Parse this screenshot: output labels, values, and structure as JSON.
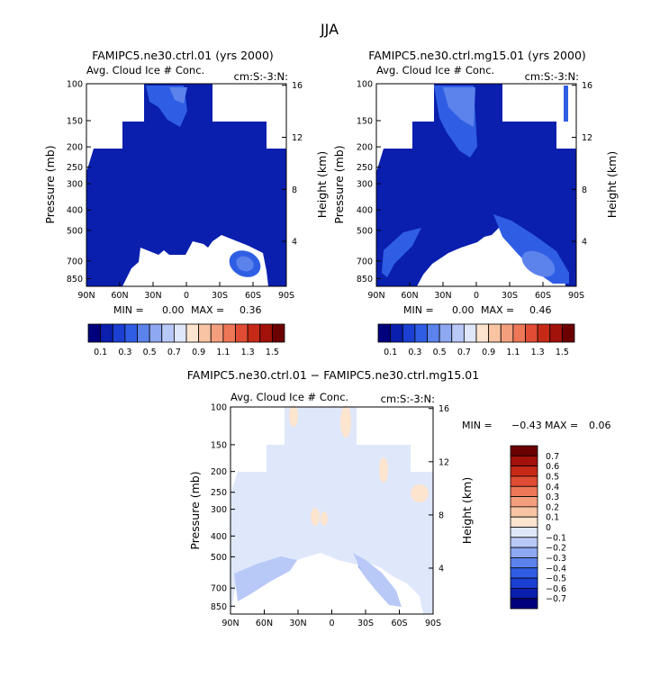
{
  "page": {
    "title": "JJA"
  },
  "colors": {
    "cb_abs": [
      "#00007d",
      "#0a1fae",
      "#1a3fd2",
      "#2f5ee4",
      "#5c82ec",
      "#8ea8f2",
      "#b9c9f7",
      "#dfe7fb",
      "#fce4cf",
      "#f8c4a3",
      "#f39f7d",
      "#ee7758",
      "#e04d34",
      "#c62a17",
      "#a2110a",
      "#6c0000"
    ],
    "cb_diff": [
      "#00007d",
      "#0a1fae",
      "#1a3fd2",
      "#2f5ee4",
      "#5c82ec",
      "#8ea8f2",
      "#b9c9f7",
      "#dfe7fb",
      "#fce4cf",
      "#f8c4a3",
      "#f39f7d",
      "#ee7758",
      "#e04d34",
      "#c62a17",
      "#a2110a",
      "#6c0000"
    ],
    "field_main": "#0a1fae",
    "field_max": "#2f5ee4",
    "field_hi": "#5c82ec",
    "diff_main": "#dfe7fb",
    "diff_neg": "#b9c9f7",
    "diff_neg2": "#8ea8f2",
    "diff_pos": "#fce4cf"
  },
  "chart_data": [
    {
      "type": "contour",
      "title": "FAMIPC5.ne30.ctrl.01 (yrs 2000)",
      "subtitle": "Avg. Cloud Ice # Conc.",
      "units": "cm:S:-3:N:",
      "ylabel": "Pressure (mb)",
      "y2label": "Height (km)",
      "pressure_ticks": [
        "100",
        "150",
        "200",
        "250",
        "300",
        "400",
        "500",
        "700",
        "850"
      ],
      "height_ticks": [
        "16",
        "12",
        "8",
        "4"
      ],
      "lat_ticks": [
        "90N",
        "60N",
        "30N",
        "0",
        "30S",
        "60S",
        "90S"
      ],
      "xlim": [
        90,
        -90
      ],
      "ylim_mb": [
        100,
        925
      ],
      "stats": {
        "min_label": "MIN = ",
        "min": "0.00",
        "max_label": "MAX = ",
        "max": "0.36"
      },
      "colorbar": {
        "levels": [
          0.1,
          0.3,
          0.5,
          0.7,
          0.9,
          1.1,
          1.3,
          1.5
        ],
        "labels": [
          "0.1",
          "0.3",
          "0.5",
          "0.7",
          "0.9",
          "1.1",
          "1.3",
          "1.5"
        ]
      }
    },
    {
      "type": "contour",
      "title": "FAMIPC5.ne30.ctrl.mg15.01 (yrs 2000)",
      "subtitle": "Avg. Cloud Ice # Conc.",
      "units": "cm:S:-3:N:",
      "ylabel": "Pressure (mb)",
      "y2label": "Height (km)",
      "pressure_ticks": [
        "100",
        "150",
        "200",
        "250",
        "300",
        "400",
        "500",
        "700",
        "850"
      ],
      "height_ticks": [
        "16",
        "12",
        "8",
        "4"
      ],
      "lat_ticks": [
        "90N",
        "60N",
        "30N",
        "0",
        "30S",
        "60S",
        "90S"
      ],
      "xlim": [
        90,
        -90
      ],
      "ylim_mb": [
        100,
        925
      ],
      "stats": {
        "min_label": "MIN = ",
        "min": "0.00",
        "max_label": "MAX = ",
        "max": "0.46"
      },
      "colorbar": {
        "levels": [
          0.1,
          0.3,
          0.5,
          0.7,
          0.9,
          1.1,
          1.3,
          1.5
        ],
        "labels": [
          "0.1",
          "0.3",
          "0.5",
          "0.7",
          "0.9",
          "1.1",
          "1.3",
          "1.5"
        ]
      }
    },
    {
      "type": "contour",
      "title": "FAMIPC5.ne30.ctrl.01 − FAMIPC5.ne30.ctrl.mg15.01",
      "subtitle": "Avg. Cloud Ice # Conc.",
      "units": "cm:S:-3:N:",
      "ylabel": "Pressure (mb)",
      "y2label": "Height (km)",
      "pressure_ticks": [
        "100",
        "150",
        "200",
        "250",
        "300",
        "400",
        "500",
        "700",
        "850"
      ],
      "height_ticks": [
        "16",
        "12",
        "8",
        "4"
      ],
      "lat_ticks": [
        "90N",
        "60N",
        "30N",
        "0",
        "30S",
        "60S",
        "90S"
      ],
      "xlim": [
        90,
        -90
      ],
      "ylim_mb": [
        100,
        925
      ],
      "stats": {
        "min_label": "MIN = ",
        "min": "−0.43",
        "max_label": "MAX = ",
        "max": "0.06"
      },
      "colorbar": {
        "levels": [
          0.7,
          0.6,
          0.5,
          0.4,
          0.3,
          0.2,
          0.1,
          0,
          -0.1,
          -0.2,
          -0.3,
          -0.4,
          -0.5,
          -0.6,
          -0.7
        ],
        "labels": [
          "0.7",
          "0.6",
          "0.5",
          "0.4",
          "0.3",
          "0.2",
          "0.1",
          "0",
          "−0.1",
          "−0.2",
          "−0.3",
          "−0.4",
          "−0.5",
          "−0.6",
          "−0.7"
        ]
      }
    }
  ]
}
